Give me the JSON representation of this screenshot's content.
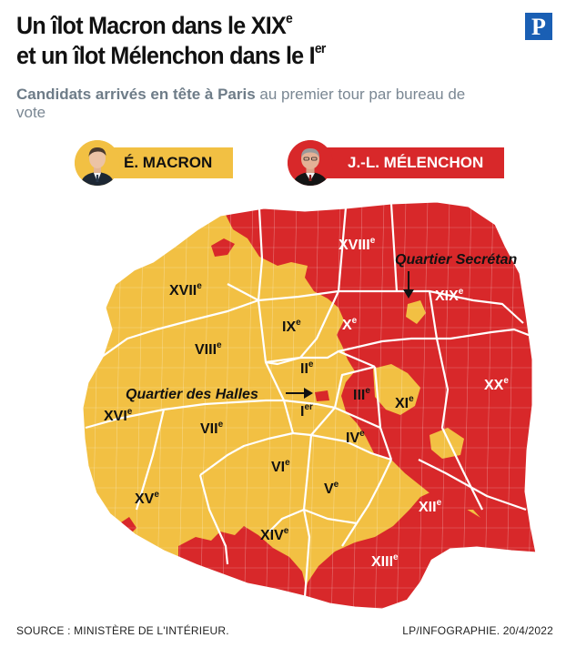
{
  "title": {
    "line1_main": "Un îlot Macron dans le XIX",
    "line1_sup": "e",
    "line2_main": "et un îlot Mélenchon dans le I",
    "line2_sup": "er"
  },
  "logo": {
    "letter": "P"
  },
  "subtitle": {
    "bold": "Candidats arrivés en tête à Paris",
    "rest": " au premier tour par bureau de vote"
  },
  "legend": [
    {
      "label": "É. MACRON",
      "color": "#f2c043",
      "icon": "macron-portrait"
    },
    {
      "label": "J.-L. MÉLENCHON",
      "color": "#d8282a",
      "icon": "melenchon-portrait"
    }
  ],
  "colors": {
    "macron": "#f2c043",
    "melenchon": "#d8282a",
    "border": "#ffffff"
  },
  "arrondissements": [
    {
      "num": "I",
      "sup": "er",
      "leader": "melenchon-pocket"
    },
    {
      "num": "II",
      "sup": "e"
    },
    {
      "num": "III",
      "sup": "e"
    },
    {
      "num": "IV",
      "sup": "e"
    },
    {
      "num": "V",
      "sup": "e"
    },
    {
      "num": "VI",
      "sup": "e"
    },
    {
      "num": "VII",
      "sup": "e"
    },
    {
      "num": "VIII",
      "sup": "e"
    },
    {
      "num": "IX",
      "sup": "e"
    },
    {
      "num": "X",
      "sup": "e"
    },
    {
      "num": "XI",
      "sup": "e"
    },
    {
      "num": "XII",
      "sup": "e"
    },
    {
      "num": "XIII",
      "sup": "e"
    },
    {
      "num": "XIV",
      "sup": "e"
    },
    {
      "num": "XV",
      "sup": "e"
    },
    {
      "num": "XVI",
      "sup": "e"
    },
    {
      "num": "XVII",
      "sup": "e"
    },
    {
      "num": "XVIII",
      "sup": "e"
    },
    {
      "num": "XIX",
      "sup": "e"
    },
    {
      "num": "XX",
      "sup": "e"
    }
  ],
  "annotations": {
    "secretan": "Quartier Secrétan",
    "halles": "Quartier des Halles"
  },
  "footer": {
    "source": "SOURCE : MINISTÈRE DE L'INTÉRIEUR.",
    "credit": "LP/INFOGRAPHIE.  20/4/2022"
  }
}
